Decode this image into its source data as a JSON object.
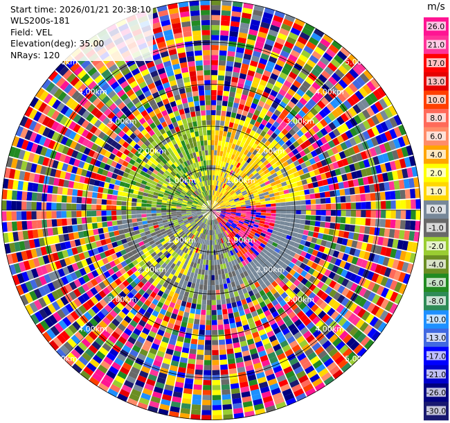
{
  "info": {
    "start_time": "Start time: 2026/01/21 20:38:10",
    "instrument": "WLS200s-181",
    "field": "Field: VEL",
    "elevation": "Elevation(deg): 35.00",
    "nrays": "NRays: 120"
  },
  "chart_data": {
    "type": "heatmap",
    "projection": "polar-ppi",
    "field": "VEL",
    "units": "m/s",
    "elevation_deg": 35.0,
    "n_rays": 120,
    "max_range_km": 5.0,
    "range_ring_labels": [
      "1.00km",
      "2.00km",
      "3.00km",
      "4.00km",
      "5.00km"
    ],
    "colorbar": {
      "title": "m/s",
      "tick_labels": [
        "26.0",
        "21.0",
        "17.0",
        "13.0",
        "10.0",
        "8.0",
        "6.0",
        "4.0",
        "2.0",
        "1.0",
        "0.0",
        "-1.0",
        "-2.0",
        "-4.0",
        "-6.0",
        "-8.0",
        "-10.0",
        "-13.0",
        "-17.0",
        "-21.0",
        "-26.0",
        "-30.0"
      ],
      "colors": [
        "#ff1493",
        "#ff3399",
        "#ff0000",
        "#e60000",
        "#ff4000",
        "#ff6a5a",
        "#ff8c69",
        "#ffa500",
        "#ffff00",
        "#ffd700",
        "#778899",
        "#696969",
        "#9acd32",
        "#6b8e23",
        "#228b22",
        "#2e8b57",
        "#1e90ff",
        "#4169e1",
        "#0000ff",
        "#0000cd",
        "#000080",
        "#191970"
      ]
    },
    "regions": [
      {
        "sector": "north-west inner",
        "range_km": [
          0,
          2.2
        ],
        "dominant": [
          "#9acd32",
          "#6b8e23",
          "#ffff00"
        ]
      },
      {
        "sector": "north-east inner",
        "range_km": [
          0,
          2.2
        ],
        "dominant": [
          "#ffd700",
          "#ffa500",
          "#ffff00"
        ]
      },
      {
        "sector": "east inner",
        "range_km": [
          0,
          1.4
        ],
        "dominant": [
          "#ff1493",
          "#ff0000"
        ]
      },
      {
        "sector": "south inner",
        "range_km": [
          0,
          2.0
        ],
        "dominant": [
          "#778899",
          "#696969"
        ]
      },
      {
        "sector": "outer all",
        "range_km": [
          2.2,
          5.1
        ],
        "dominant": [
          "mixed"
        ]
      }
    ]
  }
}
